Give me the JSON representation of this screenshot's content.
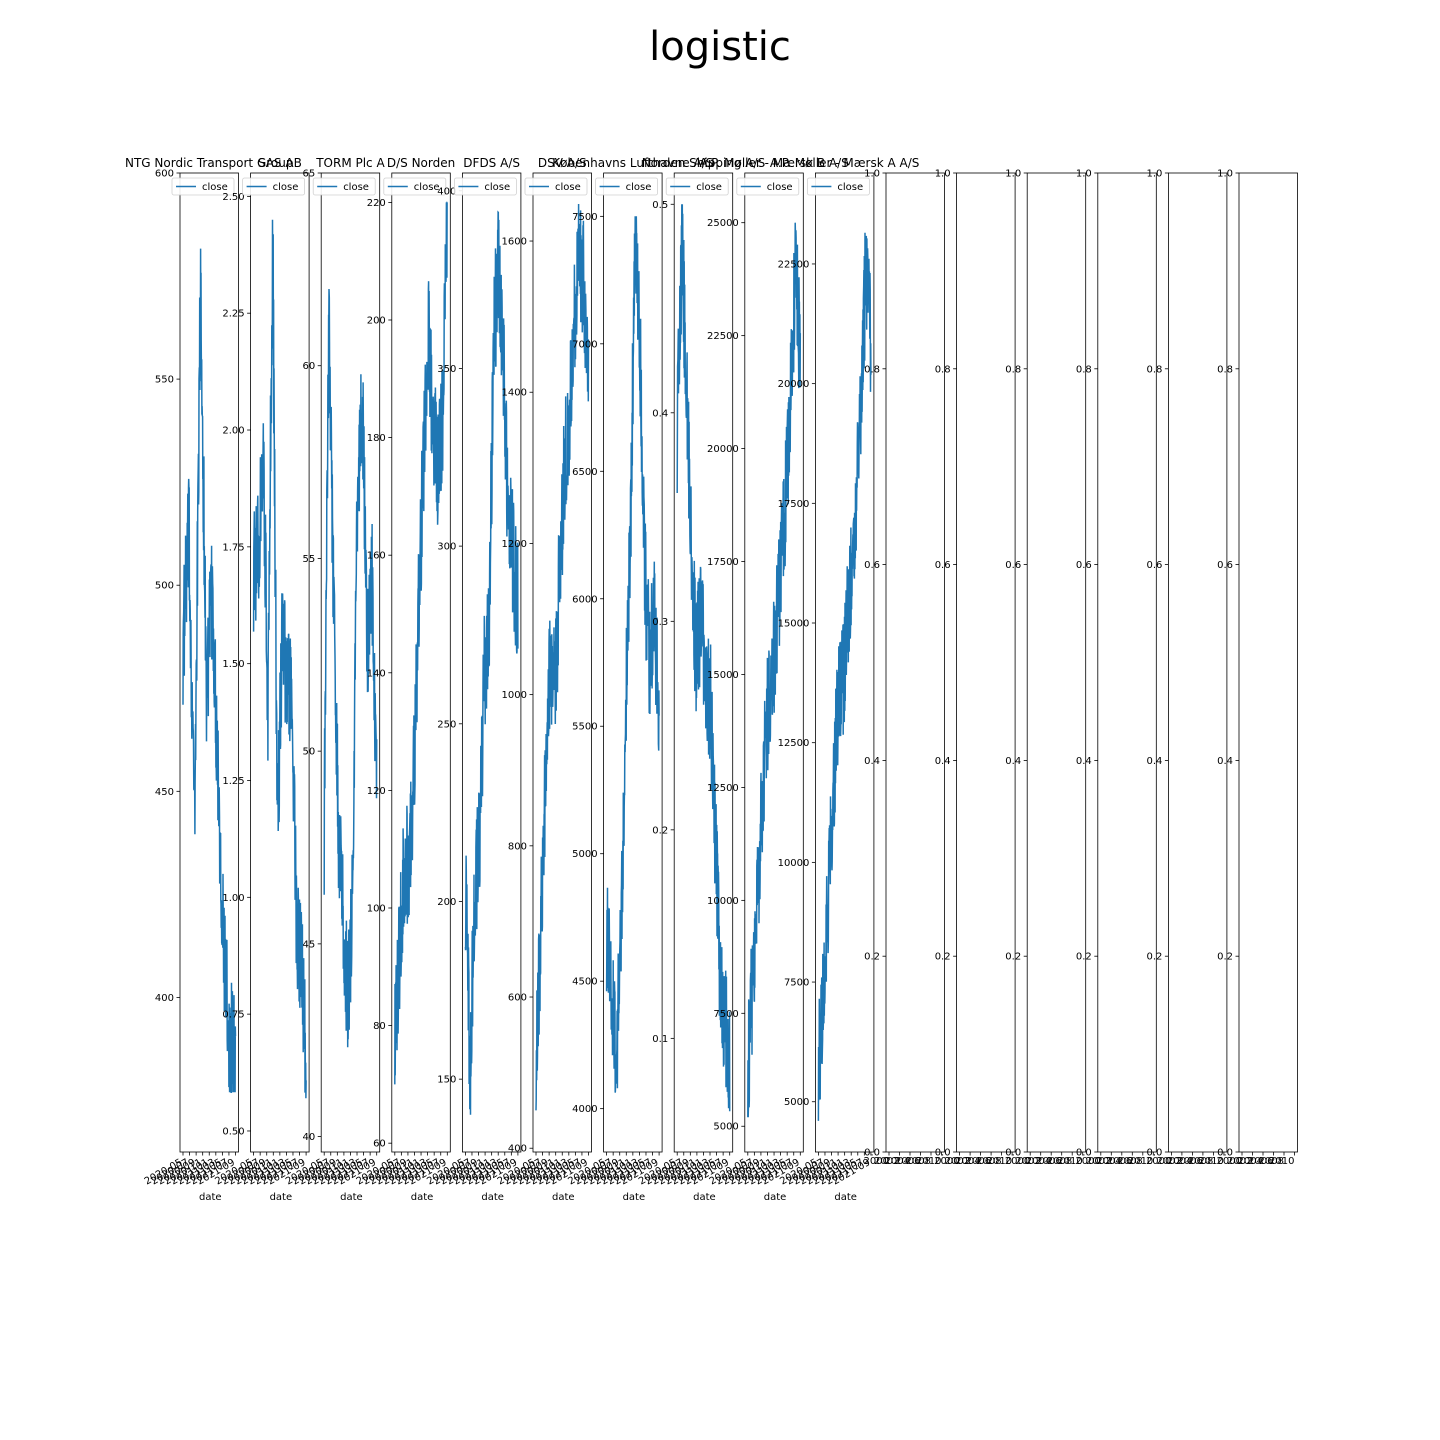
{
  "figure": {
    "title": "logistic"
  },
  "chart_data": [
    {
      "type": "line",
      "title": "NTG Nordic Transport Group",
      "xlabel": "date",
      "ylabel": "",
      "legend": "upper left",
      "series": [
        {
          "name": "close"
        }
      ],
      "ylim": [
        362.5,
        600
      ],
      "yticks": [
        400,
        450,
        500,
        550,
        600
      ],
      "xticks": [
        "2020-05",
        "2020-07",
        "2020-09",
        "2020-11",
        "2021-01",
        "2021-03",
        "2021-05",
        "2021-07",
        "2021-09"
      ],
      "profile": [
        0.5,
        0.62,
        0.3,
        0.9,
        0.45,
        0.55,
        0.36,
        0.15,
        0.06,
        0.04
      ],
      "value_range": [
        377,
        595
      ]
    },
    {
      "type": "line",
      "title": "SAS AB",
      "xlabel": "date",
      "ylabel": "",
      "legend": "upper left",
      "series": [
        {
          "name": "close"
        }
      ],
      "ylim": [
        0.455,
        2.55
      ],
      "yticks": [
        0.5,
        0.75,
        1.0,
        1.25,
        1.5,
        1.75,
        2.0,
        2.25,
        2.5
      ],
      "xticks": [
        "2020-05",
        "2020-07",
        "2020-09",
        "2020-11",
        "2021-01",
        "2021-03",
        "2021-05",
        "2021-07",
        "2021-09"
      ],
      "profile": [
        0.6,
        0.62,
        0.75,
        0.45,
        0.98,
        0.3,
        0.52,
        0.48,
        0.45,
        0.2,
        0.15,
        0.05
      ],
      "value_range": [
        0.57,
        2.45
      ]
    },
    {
      "type": "line",
      "title": "TORM Plc A",
      "xlabel": "date",
      "ylabel": "",
      "legend": "upper left",
      "series": [
        {
          "name": "close"
        }
      ],
      "ylim": [
        39.6,
        65
      ],
      "yticks": [
        40,
        45,
        50,
        55,
        60,
        65
      ],
      "xticks": [
        "2020-05",
        "2020-07",
        "2020-09",
        "2020-11",
        "2021-01",
        "2021-03",
        "2021-05",
        "2021-07",
        "2021-09"
      ],
      "profile": [
        0.3,
        0.9,
        0.55,
        0.3,
        0.2,
        0.1,
        0.25,
        0.7,
        0.8,
        0.5,
        0.6,
        0.35
      ],
      "value_range": [
        41,
        63.8
      ]
    },
    {
      "type": "line",
      "title": "D/S Norden",
      "xlabel": "date",
      "ylabel": "",
      "legend": "upper left",
      "series": [
        {
          "name": "close"
        }
      ],
      "ylim": [
        58.5,
        225
      ],
      "yticks": [
        60,
        80,
        100,
        120,
        140,
        160,
        180,
        200,
        220
      ],
      "xticks": [
        "2020-05",
        "2020-07",
        "2020-09",
        "2020-11",
        "2021-01",
        "2021-03",
        "2021-05",
        "2021-07",
        "2021-09"
      ],
      "profile": [
        0.05,
        0.15,
        0.25,
        0.25,
        0.35,
        0.55,
        0.7,
        0.85,
        0.75,
        0.7,
        0.75,
        1.0
      ],
      "value_range": [
        70,
        220
      ]
    },
    {
      "type": "line",
      "title": "DFDS A/S",
      "xlabel": "date",
      "ylabel": "",
      "legend": "upper left",
      "series": [
        {
          "name": "close"
        }
      ],
      "ylim": [
        129.5,
        405
      ],
      "yticks": [
        150,
        200,
        250,
        300,
        350,
        400
      ],
      "xticks": [
        "2020-05",
        "2020-07",
        "2020-09",
        "2020-11",
        "2021-01",
        "2021-03",
        "2021-05",
        "2021-07",
        "2021-09"
      ],
      "profile": [
        0.25,
        0.05,
        0.25,
        0.3,
        0.48,
        0.55,
        0.85,
        0.92,
        0.8,
        0.65,
        0.6,
        0.55
      ],
      "value_range": [
        140,
        400
      ]
    },
    {
      "type": "line",
      "title": "DSV A/S",
      "xlabel": "date",
      "ylabel": "",
      "legend": "upper left",
      "series": [
        {
          "name": "close"
        }
      ],
      "ylim": [
        395,
        1690
      ],
      "yticks": [
        400,
        600,
        800,
        1000,
        1200,
        1400,
        1600
      ],
      "xticks": [
        "2020-05",
        "2020-07",
        "2020-09",
        "2020-11",
        "2021-01",
        "2021-03",
        "2021-05",
        "2021-07",
        "2021-09"
      ],
      "profile": [
        0.05,
        0.2,
        0.35,
        0.5,
        0.45,
        0.6,
        0.7,
        0.75,
        0.85,
        0.95,
        0.9,
        0.8
      ],
      "value_range": [
        450,
        1660
      ]
    },
    {
      "type": "line",
      "title": "Københavns Lufthavne A/S",
      "xlabel": "date",
      "ylabel": "",
      "legend": "upper left",
      "series": [
        {
          "name": "close"
        }
      ],
      "ylim": [
        3830,
        7670
      ],
      "yticks": [
        4000,
        4500,
        5000,
        5500,
        6000,
        6500,
        7000,
        7500
      ],
      "xticks": [
        "2020-05",
        "2020-07",
        "2020-09",
        "2020-11",
        "2021-01",
        "2021-03",
        "2021-05",
        "2021-07",
        "2021-09"
      ],
      "profile": [
        0.2,
        0.15,
        0.05,
        0.2,
        0.45,
        0.65,
        1.0,
        0.85,
        0.6,
        0.5,
        0.55,
        0.45
      ],
      "value_range": [
        4000,
        7500
      ]
    },
    {
      "type": "line",
      "title": "Norden Shipping A/S",
      "xlabel": "date",
      "ylabel": "",
      "legend": "upper left",
      "series": [
        {
          "name": "close"
        }
      ],
      "ylim": [
        0.0455,
        0.515
      ],
      "yticks": [
        0.1,
        0.2,
        0.3,
        0.4,
        0.5
      ],
      "xticks": [
        "2020-05",
        "2020-07",
        "2020-09",
        "2020-11",
        "2021-01",
        "2021-03",
        "2021-05",
        "2021-07",
        "2021-09"
      ],
      "profile": [
        0.75,
        0.95,
        0.8,
        0.6,
        0.5,
        0.55,
        0.48,
        0.45,
        0.3,
        0.15,
        0.1,
        0.05
      ],
      "value_range": [
        0.065,
        0.5
      ]
    },
    {
      "type": "line",
      "title": "A.P. Møller - Mærsk B A/S",
      "xlabel": "date",
      "ylabel": "",
      "legend": "upper left",
      "series": [
        {
          "name": "close"
        }
      ],
      "ylim": [
        4430,
        26100
      ],
      "yticks": [
        5000,
        7500,
        10000,
        12500,
        15000,
        17500,
        20000,
        22500,
        25000
      ],
      "xticks": [
        "2020-05",
        "2020-07",
        "2020-09",
        "2020-11",
        "2021-01",
        "2021-03",
        "2021-05",
        "2021-07",
        "2021-09"
      ],
      "profile": [
        0.05,
        0.15,
        0.25,
        0.35,
        0.45,
        0.48,
        0.55,
        0.62,
        0.7,
        0.8,
        0.95,
        0.85
      ],
      "value_range": [
        5200,
        25000
      ]
    },
    {
      "type": "line",
      "title": "A.P. Møller - Mærsk A A/S",
      "xlabel": "date",
      "ylabel": "",
      "legend": "upper left",
      "series": [
        {
          "name": "close"
        }
      ],
      "ylim": [
        3950,
        24400
      ],
      "yticks": [
        5000,
        7500,
        10000,
        12500,
        15000,
        17500,
        20000,
        22500
      ],
      "xticks": [
        "2020-05",
        "2020-07",
        "2020-09",
        "2020-11",
        "2021-01",
        "2021-03",
        "2021-05",
        "2021-07",
        "2021-09"
      ],
      "profile": [
        0.05,
        0.15,
        0.25,
        0.35,
        0.45,
        0.48,
        0.55,
        0.62,
        0.7,
        0.8,
        0.95,
        0.85
      ],
      "value_range": [
        4600,
        23500
      ]
    },
    {
      "type": "line",
      "title": "",
      "xlabel": "",
      "empty": true,
      "ylim": [
        0,
        1
      ],
      "yticks": [
        0.0,
        0.2,
        0.4,
        0.6,
        0.8,
        1.0
      ],
      "xticks": [
        "2000",
        "2002",
        "2004",
        "2006",
        "2008",
        "2010"
      ]
    },
    {
      "type": "line",
      "title": "",
      "xlabel": "",
      "empty": true,
      "ylim": [
        0,
        1
      ],
      "yticks": [
        0.0,
        0.2,
        0.4,
        0.6,
        0.8,
        1.0
      ],
      "xticks": [
        "2000",
        "2002",
        "2004",
        "2006",
        "2008",
        "2010"
      ]
    },
    {
      "type": "line",
      "title": "",
      "xlabel": "",
      "empty": true,
      "ylim": [
        0,
        1
      ],
      "yticks": [
        0.0,
        0.2,
        0.4,
        0.6,
        0.8,
        1.0
      ],
      "xticks": [
        "2000",
        "2002",
        "2004",
        "2006",
        "2008",
        "2010"
      ]
    },
    {
      "type": "line",
      "title": "",
      "xlabel": "",
      "empty": true,
      "ylim": [
        0,
        1
      ],
      "yticks": [
        0.0,
        0.2,
        0.4,
        0.6,
        0.8,
        1.0
      ],
      "xticks": [
        "2000",
        "2002",
        "2004",
        "2006",
        "2008",
        "2010"
      ]
    },
    {
      "type": "line",
      "title": "",
      "xlabel": "",
      "empty": true,
      "ylim": [
        0,
        1
      ],
      "yticks": [
        0.0,
        0.2,
        0.4,
        0.6,
        0.8,
        1.0
      ],
      "xticks": [
        "2000",
        "2002",
        "2004",
        "2006",
        "2008",
        "2010"
      ]
    },
    {
      "type": "line",
      "title": "",
      "xlabel": "",
      "empty": true,
      "ylim": [
        0,
        1
      ],
      "yticks": [
        0.0,
        0.2,
        0.4,
        0.6,
        0.8,
        1.0
      ],
      "xticks": [
        "2000",
        "2002",
        "2004",
        "2006",
        "2008",
        "2010"
      ]
    }
  ]
}
